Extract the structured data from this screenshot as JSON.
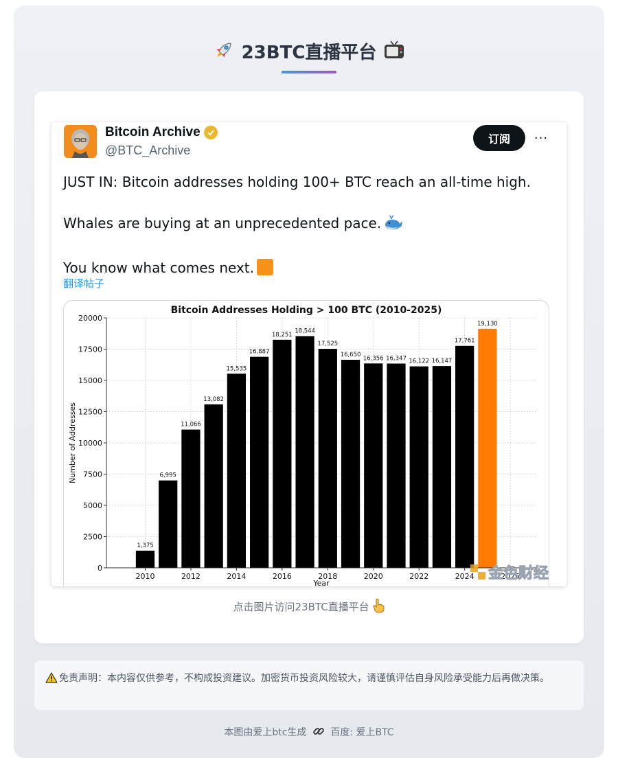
{
  "header": {
    "title": "23BTC直播平台",
    "left_icon": "rocket-icon",
    "right_icon": "tv-icon"
  },
  "tweet": {
    "display_name": "Bitcoin Archive",
    "handle": "@BTC_Archive",
    "subscribe_label": "订阅",
    "more_label": "···",
    "paragraphs": [
      "JUST IN: Bitcoin addresses holding 100+ BTC reach an all-time high.",
      "Whales are buying at an unprecedented pace.",
      "You know what comes next."
    ],
    "translate_label": "翻译帖子"
  },
  "chart_data": {
    "type": "bar",
    "title": "Bitcoin Addresses Holding > 100 BTC (2010-2025)",
    "xlabel": "Year",
    "ylabel": "Number of Addresses",
    "categories": [
      "2010",
      "2011",
      "2012",
      "2013",
      "2014",
      "2015",
      "2016",
      "2017",
      "2018",
      "2019",
      "2020",
      "2021",
      "2022",
      "2023",
      "2024",
      "2025"
    ],
    "values": [
      1375,
      6995,
      11066,
      13082,
      15535,
      16887,
      18251,
      18544,
      17525,
      16650,
      16356,
      16347,
      16122,
      16147,
      17761,
      19130
    ],
    "value_labels": [
      "1,375",
      "6,995",
      "11,066",
      "13,082",
      "15,535",
      "16,887",
      "18,251",
      "18,544",
      "17,525",
      "16,650",
      "16,356",
      "16,347",
      "16,122",
      "16,147",
      "17,761",
      "19,130"
    ],
    "x_tick_labels": [
      "2010",
      "2012",
      "2014",
      "2016",
      "2018",
      "2020",
      "2022",
      "2024",
      "2026"
    ],
    "y_ticks": [
      0,
      2500,
      5000,
      7500,
      10000,
      12500,
      15000,
      17500,
      20000
    ],
    "ylim": [
      0,
      20000
    ],
    "grid": true,
    "colors": {
      "default": "#000000",
      "highlight": "#ff7a00"
    },
    "highlight_index": 15,
    "watermark": "金色财经"
  },
  "caption": "点击图片访问23BTC直播平台",
  "disclaimer": "免责声明：本内容仅供参考，不构成投资建议。加密货币投资风险较大，请谨慎评估自身风险承受能力后再做决策。",
  "footer": {
    "text": "本图由爱上btc生成",
    "source": "百度: 爱上BTC"
  },
  "colors": {
    "brand_dark": "#0f1419",
    "link": "#1d9bf0",
    "verified": "#e8b930",
    "bitcoin_orange": "#f7931a"
  }
}
